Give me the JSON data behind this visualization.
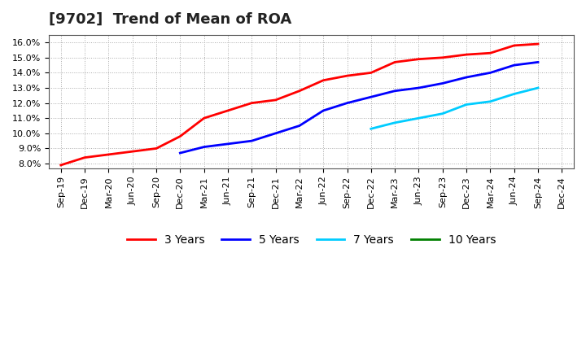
{
  "title": "[9702]  Trend of Mean of ROA",
  "ylim": [
    0.077,
    0.165
  ],
  "yticks": [
    0.08,
    0.09,
    0.1,
    0.11,
    0.12,
    0.13,
    0.14,
    0.15,
    0.16
  ],
  "series": {
    "3 Years": {
      "color": "#ff0000",
      "x": [
        "Sep-19",
        "Dec-19",
        "Mar-20",
        "Jun-20",
        "Sep-20",
        "Dec-20",
        "Mar-21",
        "Jun-21",
        "Sep-21",
        "Dec-21",
        "Mar-22",
        "Jun-22",
        "Sep-22",
        "Dec-22",
        "Mar-23",
        "Jun-23",
        "Sep-23",
        "Dec-23",
        "Mar-24",
        "Jun-24",
        "Sep-24"
      ],
      "y": [
        0.079,
        0.084,
        0.086,
        0.088,
        0.09,
        0.098,
        0.11,
        0.115,
        0.12,
        0.122,
        0.128,
        0.135,
        0.138,
        0.14,
        0.147,
        0.149,
        0.15,
        0.152,
        0.153,
        0.158,
        0.159
      ]
    },
    "5 Years": {
      "color": "#0000ff",
      "x": [
        "Dec-20",
        "Mar-21",
        "Jun-21",
        "Sep-21",
        "Dec-21",
        "Mar-22",
        "Jun-22",
        "Sep-22",
        "Dec-22",
        "Mar-23",
        "Jun-23",
        "Sep-23",
        "Dec-23",
        "Mar-24",
        "Jun-24",
        "Sep-24"
      ],
      "y": [
        0.087,
        0.091,
        0.093,
        0.095,
        0.1,
        0.105,
        0.115,
        0.12,
        0.124,
        0.128,
        0.13,
        0.133,
        0.137,
        0.14,
        0.145,
        0.147
      ]
    },
    "7 Years": {
      "color": "#00ccff",
      "x": [
        "Dec-22",
        "Mar-23",
        "Jun-23",
        "Sep-23",
        "Dec-23",
        "Mar-24",
        "Jun-24",
        "Sep-24"
      ],
      "y": [
        0.103,
        0.107,
        0.11,
        0.113,
        0.119,
        0.121,
        0.126,
        0.13
      ]
    },
    "10 Years": {
      "color": "#008000",
      "x": [],
      "y": []
    }
  },
  "xtick_labels": [
    "Sep-19",
    "Dec-19",
    "Mar-20",
    "Jun-20",
    "Sep-20",
    "Dec-20",
    "Mar-21",
    "Jun-21",
    "Sep-21",
    "Dec-21",
    "Mar-22",
    "Jun-22",
    "Sep-22",
    "Dec-22",
    "Mar-23",
    "Jun-23",
    "Sep-23",
    "Dec-23",
    "Mar-24",
    "Jun-24",
    "Sep-24",
    "Dec-24"
  ],
  "background_color": "#ffffff",
  "grid_color": "#aaaaaa",
  "title_fontsize": 13,
  "legend_fontsize": 10,
  "tick_fontsize": 8
}
